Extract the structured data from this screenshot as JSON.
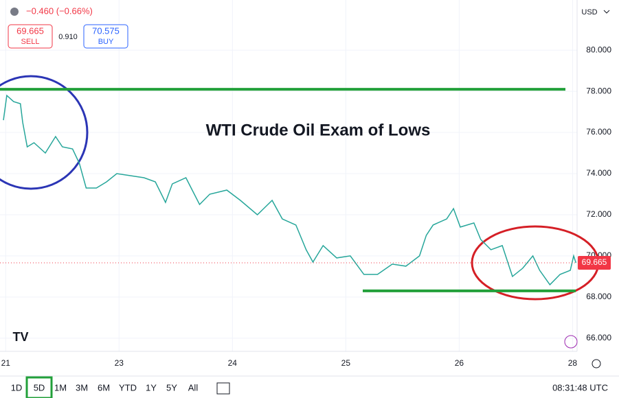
{
  "header": {
    "change": "−0.460 (−0.66%)",
    "sell_price": "69.665",
    "sell_label": "SELL",
    "spread": "0.910",
    "buy_price": "70.575",
    "buy_label": "BUY",
    "currency": "USD"
  },
  "chart_data": {
    "type": "line",
    "title": "WTI Crude Oil Exam of Lows",
    "price_tag": "69.665",
    "series": [
      {
        "name": "WTI",
        "color": "#26a69a",
        "x": [
          -0.02,
          0.01,
          0.07,
          0.13,
          0.15,
          0.19,
          0.25,
          0.35,
          0.44,
          0.5,
          0.59,
          0.65,
          0.71,
          0.8,
          0.89,
          0.98,
          1.1,
          1.22,
          1.32,
          1.41,
          1.47,
          1.59,
          1.71,
          1.8,
          1.95,
          2.07,
          2.22,
          2.35,
          2.44,
          2.56,
          2.65,
          2.71,
          2.8,
          2.92,
          3.04,
          3.16,
          3.28,
          3.41,
          3.53,
          3.65,
          3.71,
          3.77,
          3.89,
          3.95,
          4.01,
          4.13,
          4.19,
          4.28,
          4.38,
          4.47,
          4.56,
          4.65,
          4.71,
          4.8,
          4.89,
          4.98,
          5.01,
          5.03
        ],
        "values": [
          76.6,
          77.8,
          77.5,
          77.4,
          76.5,
          75.3,
          75.5,
          75.0,
          75.8,
          75.3,
          75.2,
          74.5,
          73.3,
          73.3,
          73.6,
          74.0,
          73.9,
          73.8,
          73.6,
          72.6,
          73.5,
          73.8,
          72.5,
          73.0,
          73.2,
          72.7,
          72.0,
          72.7,
          71.8,
          71.5,
          70.3,
          69.7,
          70.5,
          69.9,
          70.0,
          69.1,
          69.1,
          69.6,
          69.5,
          70.0,
          71.0,
          71.5,
          71.8,
          72.3,
          71.4,
          71.6,
          70.8,
          70.3,
          70.5,
          69.0,
          69.4,
          70.0,
          69.3,
          68.6,
          69.1,
          69.3,
          70.0,
          69.665
        ]
      }
    ],
    "levels": [
      {
        "value": 78.1,
        "color": "#22a03a"
      },
      {
        "value": 68.3,
        "color": "#22a03a"
      }
    ],
    "xlim": [
      -0.05,
      5.04
    ],
    "xticks": [
      {
        "value": 0,
        "label": "21"
      },
      {
        "value": 1,
        "label": "23"
      },
      {
        "value": 2,
        "label": "24"
      },
      {
        "value": 3,
        "label": "25"
      },
      {
        "value": 4,
        "label": "26"
      },
      {
        "value": 5,
        "label": "28"
      }
    ],
    "ylim": [
      65.36,
      82.44
    ],
    "yticks": [
      {
        "value": 66,
        "label": "66.000"
      },
      {
        "value": 68,
        "label": "68.000"
      },
      {
        "value": 70,
        "label": "70.000"
      },
      {
        "value": 72,
        "label": "72.000"
      },
      {
        "value": 74,
        "label": "74.000"
      },
      {
        "value": 76,
        "label": "76.000"
      },
      {
        "value": 78,
        "label": "78.000"
      },
      {
        "value": 80,
        "label": "80.000"
      }
    ],
    "grid": true
  },
  "toolbar": {
    "ranges": [
      "1D",
      "5D",
      "1M",
      "3M",
      "6M",
      "YTD",
      "1Y",
      "5Y",
      "All"
    ],
    "active": 1,
    "time": "08:31:48 UTC"
  }
}
